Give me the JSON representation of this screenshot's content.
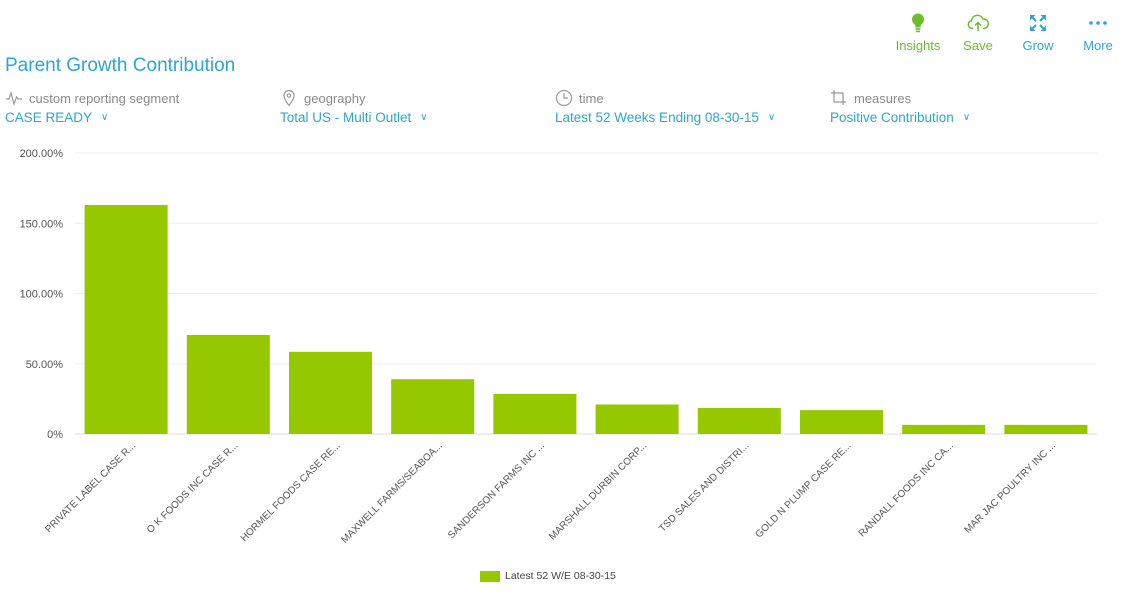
{
  "toolbar": {
    "insights": "Insights",
    "save": "Save",
    "grow": "Grow",
    "more": "More"
  },
  "title": "Parent Growth Contribution",
  "filters": {
    "segment": {
      "label": "custom reporting segment",
      "value": "CASE READY"
    },
    "geography": {
      "label": "geography",
      "value": "Total US - Multi Outlet"
    },
    "time": {
      "label": "time",
      "value": "Latest 52 Weeks Ending 08-30-15"
    },
    "measures": {
      "label": "measures",
      "value": "Positive Contribution"
    }
  },
  "colors": {
    "accent": "#2aa6d8",
    "green": "#6abf2a",
    "bar": "#96c800"
  },
  "chart_data": {
    "type": "bar",
    "categories": [
      "PRIVATE LABEL CASE R...",
      "O K FOODS INC CASE R...",
      "HORMEL FOODS CASE RE...",
      "MAXWELL FARMS/SEABOA...",
      "SANDERSON FARMS INC ...",
      "MARSHALL DURBIN CORP...",
      "TSD SALES AND DISTRI...",
      "GOLD N PLUMP CASE RE...",
      "RANDALL FOODS INC CA...",
      "MAR JAC POULTRY INC ..."
    ],
    "series": [
      {
        "name": "Latest 52 W/E 08-30-15",
        "values": [
          163,
          70.5,
          58.5,
          39,
          28.5,
          21,
          18.5,
          17,
          6.5,
          6.5
        ]
      }
    ],
    "yticks": [
      "0%",
      "50.00%",
      "100.00%",
      "150.00%",
      "200.00%"
    ],
    "ylim": [
      0,
      200
    ],
    "grid": true,
    "legend": "bottom-center"
  }
}
